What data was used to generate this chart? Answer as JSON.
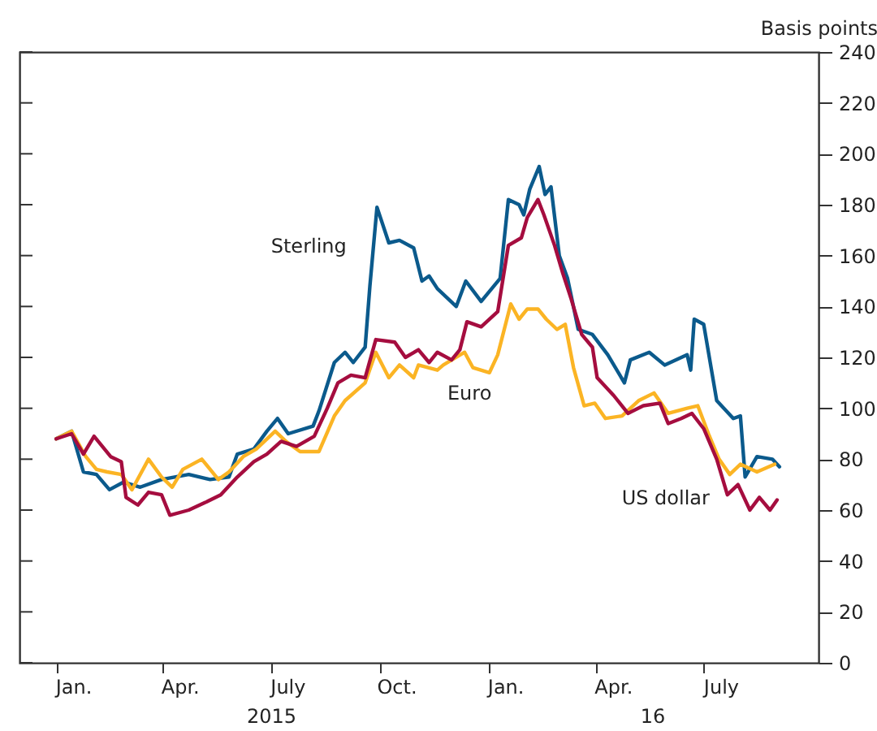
{
  "chart_data": {
    "type": "line",
    "ylabel": "Basis points",
    "xlim": [
      "2014-12-01",
      "2016-10-06"
    ],
    "ylim": [
      0,
      240
    ],
    "yticks": [
      0,
      20,
      40,
      60,
      80,
      100,
      120,
      140,
      160,
      180,
      200,
      220,
      240
    ],
    "xticks": [
      {
        "value": "2015-01-01",
        "label": null
      },
      {
        "value": "2015-04-01",
        "label": null
      },
      {
        "value": "2015-07-01",
        "label": null
      },
      {
        "value": "2015-10-01",
        "label": null
      },
      {
        "value": "2016-01-01",
        "label": null
      },
      {
        "value": "2016-04-01",
        "label": null
      },
      {
        "value": "2016-07-01",
        "label": null
      },
      {
        "value": "2015-01-16",
        "label": "Jan."
      },
      {
        "value": "2015-04-16",
        "label": "Apr."
      },
      {
        "value": "2015-07-16",
        "label": "July"
      },
      {
        "value": "2015-10-16",
        "label": "Oct."
      },
      {
        "value": "2016-01-16",
        "label": "Jan."
      },
      {
        "value": "2016-04-16",
        "label": "Apr."
      },
      {
        "value": "2016-07-16",
        "label": "July"
      }
    ],
    "annotations": [
      "2015",
      "16"
    ],
    "grid": false,
    "legend": false,
    "marker": "none",
    "line_style": "solid",
    "series": [
      {
        "name": "Sterling",
        "color": "#0b5a8c",
        "x": [
          "2015-01-01",
          "2015-01-14",
          "2015-01-24",
          "2015-02-04",
          "2015-02-15",
          "2015-02-27",
          "2015-03-13",
          "2015-03-31",
          "2015-04-23",
          "2015-05-11",
          "2015-05-27",
          "2015-06-03",
          "2015-06-17",
          "2015-06-28",
          "2015-07-07",
          "2015-07-16",
          "2015-08-06",
          "2015-08-11",
          "2015-08-24",
          "2015-09-02",
          "2015-09-09",
          "2015-09-19",
          "2015-09-23",
          "2015-09-29",
          "2015-10-09",
          "2015-10-18",
          "2015-10-30",
          "2015-11-06",
          "2015-11-12",
          "2015-11-19",
          "2015-12-05",
          "2015-12-13",
          "2015-12-26",
          "2016-01-11",
          "2016-01-18",
          "2016-01-27",
          "2016-01-31",
          "2016-02-05",
          "2016-02-13",
          "2016-02-18",
          "2016-02-23",
          "2016-03-01",
          "2016-03-08",
          "2016-03-17",
          "2016-03-29",
          "2016-04-11",
          "2016-04-25",
          "2016-04-30",
          "2016-05-16",
          "2016-05-29",
          "2016-06-17",
          "2016-06-20",
          "2016-06-23",
          "2016-07-01",
          "2016-07-12",
          "2016-07-26",
          "2016-08-01",
          "2016-08-05",
          "2016-08-15",
          "2016-08-28",
          "2016-09-03"
        ],
        "values": [
          88,
          91,
          75,
          74,
          68,
          71,
          69,
          72,
          74,
          72,
          73,
          82,
          84,
          91,
          96,
          90,
          93,
          99,
          118,
          122,
          118,
          124,
          148,
          179,
          165,
          166,
          163,
          150,
          152,
          147,
          140,
          150,
          142,
          151,
          182,
          180,
          176,
          186,
          195,
          184,
          187,
          160,
          151,
          131,
          129,
          121,
          110,
          119,
          122,
          117,
          121,
          115,
          135,
          133,
          103,
          96,
          97,
          73,
          81,
          80,
          77
        ]
      },
      {
        "name": "Euro",
        "color": "#fbb424",
        "x": [
          "2015-01-01",
          "2015-01-14",
          "2015-01-26",
          "2015-02-04",
          "2015-02-13",
          "2015-02-25",
          "2015-03-06",
          "2015-03-20",
          "2015-03-31",
          "2015-04-09",
          "2015-04-18",
          "2015-05-04",
          "2015-05-18",
          "2015-05-27",
          "2015-06-08",
          "2015-06-19",
          "2015-07-05",
          "2015-07-14",
          "2015-07-26",
          "2015-08-11",
          "2015-08-24",
          "2015-09-02",
          "2015-09-19",
          "2015-09-28",
          "2015-10-09",
          "2015-10-18",
          "2015-10-30",
          "2015-11-03",
          "2015-11-19",
          "2015-11-24",
          "2015-12-12",
          "2015-12-19",
          "2016-01-02",
          "2016-01-09",
          "2016-01-20",
          "2016-01-27",
          "2016-02-03",
          "2016-02-12",
          "2016-02-19",
          "2016-02-28",
          "2016-03-06",
          "2016-03-13",
          "2016-03-22",
          "2016-03-31",
          "2016-04-09",
          "2016-04-23",
          "2016-05-07",
          "2016-05-20",
          "2016-06-01",
          "2016-06-17",
          "2016-06-26",
          "2016-07-05",
          "2016-07-14",
          "2016-07-23",
          "2016-08-01",
          "2016-08-15",
          "2016-08-30"
        ],
        "values": [
          88,
          91,
          81,
          76,
          75,
          74,
          68,
          80,
          73,
          69,
          76,
          80,
          72,
          75,
          81,
          84,
          91,
          87,
          83,
          83,
          97,
          103,
          110,
          122,
          112,
          117,
          112,
          117,
          115,
          117,
          122,
          116,
          114,
          121,
          141,
          135,
          139,
          139,
          135,
          131,
          133,
          116,
          101,
          102,
          96,
          97,
          103,
          106,
          98,
          100,
          101,
          90,
          80,
          74,
          78,
          75,
          78
        ]
      },
      {
        "name": "US dollar",
        "color": "#a50d3f",
        "x": [
          "2015-01-01",
          "2015-01-14",
          "2015-01-24",
          "2015-02-02",
          "2015-02-16",
          "2015-02-25",
          "2015-03-01",
          "2015-03-11",
          "2015-03-20",
          "2015-03-31",
          "2015-04-07",
          "2015-04-23",
          "2015-05-07",
          "2015-05-20",
          "2015-06-03",
          "2015-06-17",
          "2015-06-28",
          "2015-07-10",
          "2015-07-23",
          "2015-08-07",
          "2015-08-18",
          "2015-08-27",
          "2015-09-07",
          "2015-09-19",
          "2015-09-28",
          "2015-10-14",
          "2015-10-23",
          "2015-11-03",
          "2015-11-12",
          "2015-11-19",
          "2015-12-01",
          "2015-12-08",
          "2015-12-14",
          "2015-12-26",
          "2016-01-09",
          "2016-01-18",
          "2016-01-29",
          "2016-02-03",
          "2016-02-12",
          "2016-02-17",
          "2016-02-26",
          "2016-03-04",
          "2016-03-11",
          "2016-03-20",
          "2016-03-29",
          "2016-04-02",
          "2016-04-16",
          "2016-04-28",
          "2016-05-11",
          "2016-05-25",
          "2016-06-01",
          "2016-06-12",
          "2016-06-21",
          "2016-07-01",
          "2016-07-12",
          "2016-07-21",
          "2016-07-30",
          "2016-08-09",
          "2016-08-17",
          "2016-08-26",
          "2016-09-01"
        ],
        "values": [
          88,
          90,
          82,
          89,
          81,
          79,
          65,
          62,
          67,
          66,
          58,
          60,
          63,
          66,
          73,
          79,
          82,
          87,
          85,
          89,
          100,
          110,
          113,
          112,
          127,
          126,
          120,
          123,
          118,
          122,
          119,
          123,
          134,
          132,
          138,
          164,
          167,
          175,
          182,
          176,
          164,
          153,
          143,
          129,
          124,
          112,
          105,
          98,
          101,
          102,
          94,
          96,
          98,
          92,
          80,
          66,
          70,
          60,
          65,
          60,
          64
        ]
      }
    ]
  }
}
